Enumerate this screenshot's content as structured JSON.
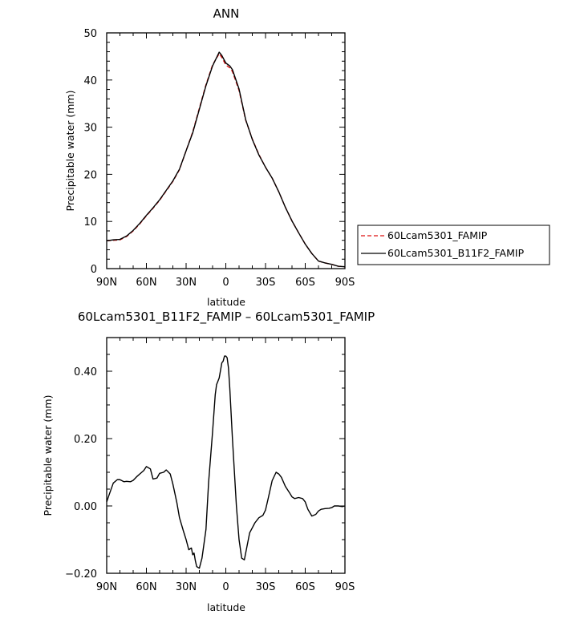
{
  "chart_data": [
    {
      "type": "line",
      "title": "ANN",
      "xlabel": "latitude",
      "ylabel": "Precipitable water (mm)",
      "xlim": [
        90,
        -90
      ],
      "ylim": [
        0,
        50
      ],
      "xticks": [
        90,
        60,
        30,
        0,
        -30,
        -60,
        -90
      ],
      "xtick_labels": [
        "90N",
        "60N",
        "30N",
        "0",
        "30S",
        "60S",
        "90S"
      ],
      "yticks": [
        0,
        10,
        20,
        30,
        40,
        50
      ],
      "ytick_labels": [
        "0",
        "10",
        "20",
        "30",
        "40",
        "50"
      ],
      "legend_position": "right",
      "x": [
        90,
        85,
        80,
        75,
        70,
        65,
        60,
        55,
        50,
        45,
        40,
        35,
        30,
        25,
        20,
        15,
        10,
        5,
        3,
        0,
        -3,
        -5,
        -10,
        -15,
        -20,
        -25,
        -30,
        -35,
        -40,
        -45,
        -50,
        -55,
        -60,
        -65,
        -70,
        -75,
        -80,
        -85,
        -90
      ],
      "series": [
        {
          "name": "60Lcam5301_FAMIP",
          "color": "#dd1111",
          "dash": "dashed",
          "values": [
            5.9,
            6.0,
            6.1,
            6.8,
            8.0,
            9.5,
            11.2,
            12.8,
            14.5,
            16.5,
            18.5,
            21.0,
            25.0,
            29.0,
            34.0,
            39.0,
            43.2,
            45.6,
            44.8,
            43.2,
            42.6,
            41.8,
            37.8,
            31.5,
            27.5,
            24.2,
            21.5,
            19.2,
            16.3,
            13.0,
            10.1,
            7.6,
            5.2,
            3.2,
            1.6,
            1.2,
            0.9,
            0.5,
            0.4
          ]
        },
        {
          "name": "60Lcam5301_B11F2_FAMIP",
          "color": "#000000",
          "dash": "solid",
          "values": [
            5.9,
            6.1,
            6.2,
            6.9,
            8.1,
            9.6,
            11.3,
            12.9,
            14.6,
            16.6,
            18.6,
            21.1,
            25.0,
            28.8,
            33.8,
            38.8,
            43.0,
            45.9,
            45.2,
            43.6,
            43.0,
            42.2,
            38.1,
            31.6,
            27.4,
            24.1,
            21.5,
            19.2,
            16.3,
            13.0,
            10.1,
            7.6,
            5.2,
            3.2,
            1.6,
            1.2,
            0.9,
            0.5,
            0.4
          ]
        }
      ]
    },
    {
      "type": "line",
      "title": "60Lcam5301_B11F2_FAMIP – 60Lcam5301_FAMIP",
      "xlabel": "latitude",
      "ylabel": "Precipitable water (mm)",
      "xlim": [
        90,
        -90
      ],
      "ylim": [
        -0.2,
        0.5
      ],
      "xticks": [
        90,
        60,
        30,
        0,
        -30,
        -60,
        -90
      ],
      "xtick_labels": [
        "90N",
        "60N",
        "30N",
        "0",
        "30S",
        "60S",
        "90S"
      ],
      "yticks": [
        -0.2,
        0.0,
        0.2,
        0.4
      ],
      "ytick_labels": [
        "−0.20",
        "0.00",
        "0.20",
        "0.40"
      ],
      "x": [
        90,
        88,
        85,
        82,
        80,
        77,
        75,
        72,
        70,
        67,
        65,
        62,
        60,
        57,
        55,
        52,
        50,
        47,
        45,
        42,
        40,
        37,
        35,
        32,
        30,
        28,
        26,
        25,
        24,
        23,
        22,
        20,
        18,
        15,
        13,
        10,
        8,
        7,
        6,
        5,
        3,
        2,
        1,
        0,
        -1,
        -2,
        -3,
        -5,
        -8,
        -10,
        -12,
        -14,
        -16,
        -18,
        -20,
        -22,
        -25,
        -28,
        -30,
        -32,
        -35,
        -38,
        -40,
        -42,
        -45,
        -48,
        -50,
        -52,
        -55,
        -58,
        -60,
        -62,
        -65,
        -68,
        -70,
        -72,
        -75,
        -78,
        -80,
        -82,
        -85,
        -88,
        -90
      ],
      "series": [
        {
          "name": "",
          "color": "#000000",
          "dash": "solid",
          "values": [
            0.012,
            0.035,
            0.068,
            0.078,
            0.078,
            0.072,
            0.073,
            0.072,
            0.076,
            0.088,
            0.095,
            0.105,
            0.117,
            0.11,
            0.08,
            0.083,
            0.097,
            0.1,
            0.107,
            0.095,
            0.065,
            0.01,
            -0.035,
            -0.075,
            -0.1,
            -0.13,
            -0.125,
            -0.145,
            -0.14,
            -0.163,
            -0.18,
            -0.185,
            -0.155,
            -0.07,
            0.07,
            0.22,
            0.33,
            0.36,
            0.37,
            0.38,
            0.425,
            0.43,
            0.445,
            0.445,
            0.44,
            0.41,
            0.35,
            0.2,
            0.0,
            -0.1,
            -0.155,
            -0.16,
            -0.12,
            -0.08,
            -0.065,
            -0.05,
            -0.035,
            -0.028,
            -0.012,
            0.022,
            0.075,
            0.1,
            0.095,
            0.085,
            0.058,
            0.04,
            0.027,
            0.022,
            0.025,
            0.022,
            0.012,
            -0.01,
            -0.03,
            -0.025,
            -0.015,
            -0.01,
            -0.008,
            -0.007,
            -0.005,
            0.0,
            0.0,
            -0.002,
            0.0
          ]
        }
      ]
    }
  ]
}
